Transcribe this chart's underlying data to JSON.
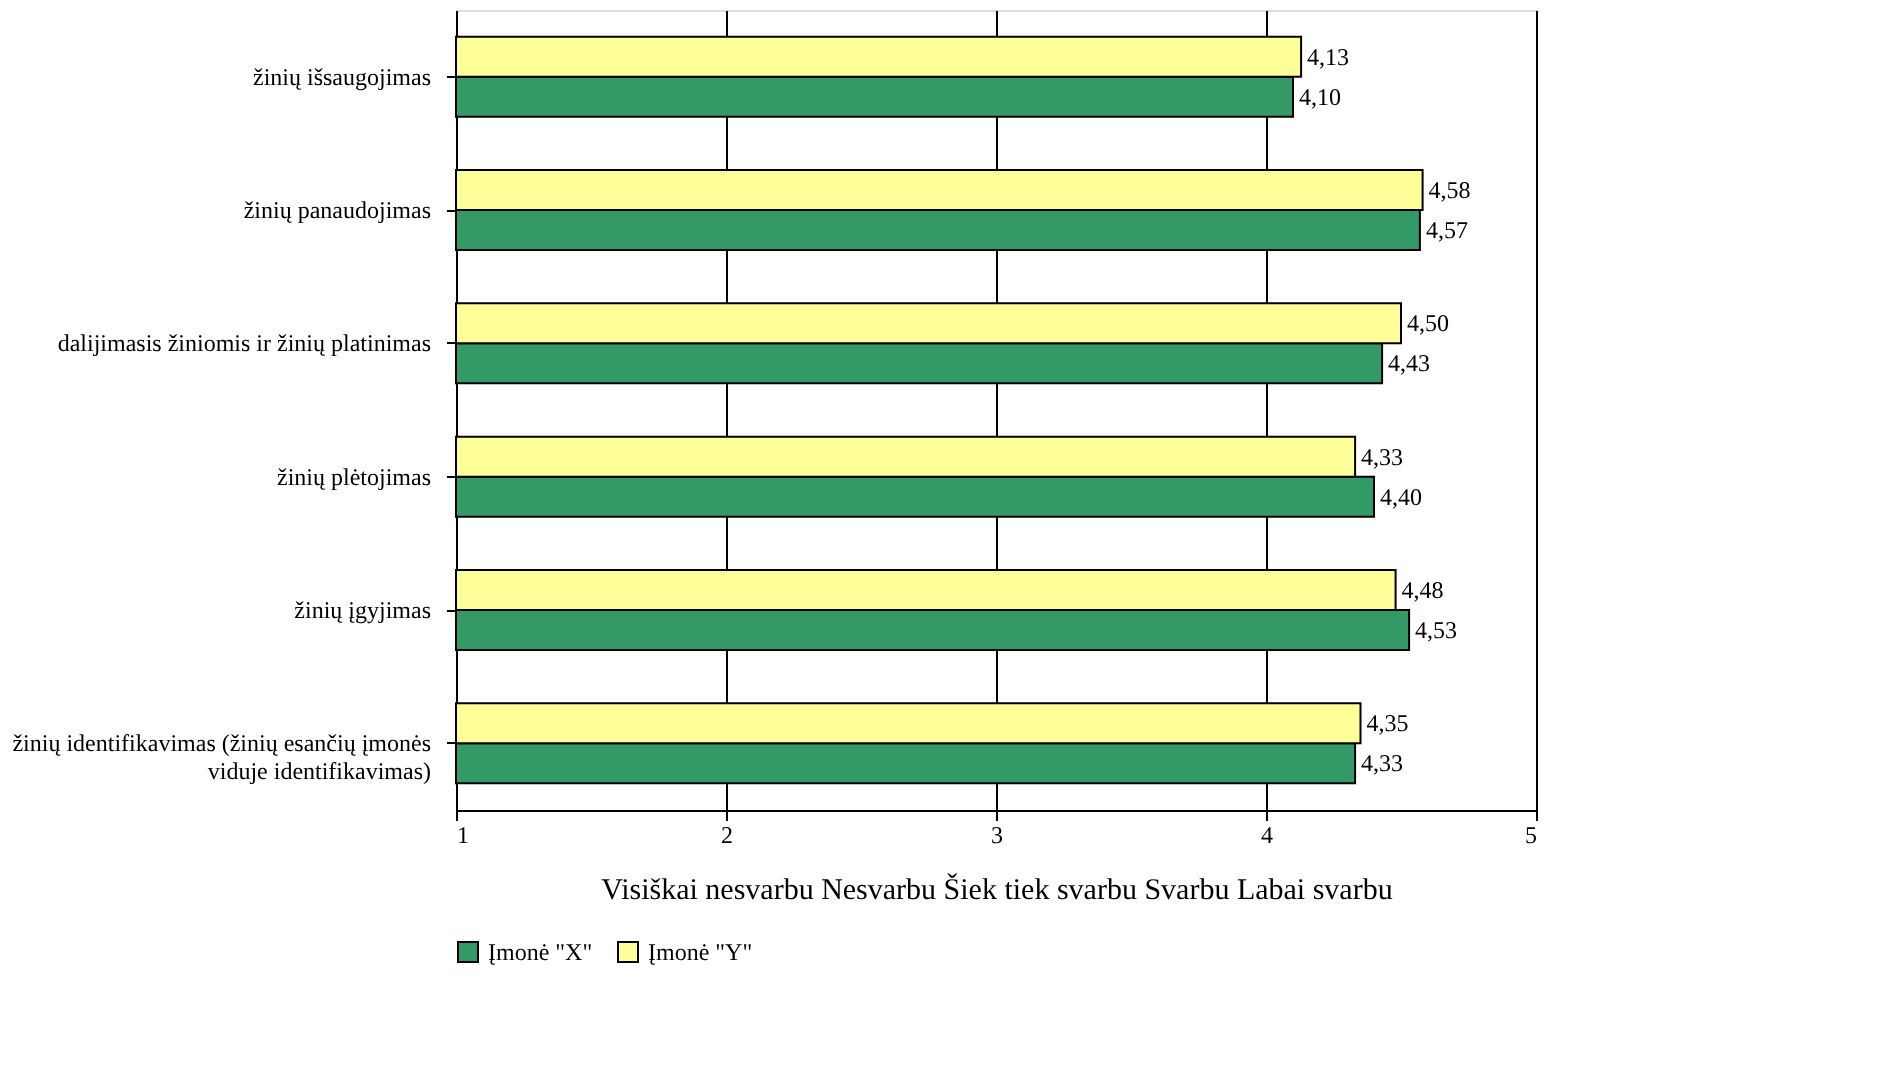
{
  "chart_data": {
    "type": "bar",
    "orientation": "horizontal",
    "xlabel": "Visiškai nesvarbu Nesvarbu Šiek tiek svarbu  Svarbu Labai svarbu",
    "categories": [
      "žinių išsaugojimas",
      "žinių panaudojimas",
      "dalijimasis žiniomis ir žinių platinimas",
      "žinių plėtojimas",
      "žinių įgyjimas",
      "žinių identifikavimas (žinių esančių įmonės viduje identifikavimas)"
    ],
    "series": [
      {
        "name": "Įmonė \"X\"",
        "color": "#339966",
        "values": [
          4.1,
          4.57,
          4.43,
          4.4,
          4.53,
          4.33
        ],
        "value_labels": [
          "4,10",
          "4,57",
          "4,43",
          "4,40",
          "4,53",
          "4,33"
        ]
      },
      {
        "name": "Įmonė \"Y\"",
        "color": "#ffff99",
        "values": [
          4.13,
          4.58,
          4.5,
          4.33,
          4.48,
          4.35
        ],
        "value_labels": [
          "4,13",
          "4,58",
          "4,50",
          "4,33",
          "4,48",
          "4,35"
        ]
      }
    ],
    "xlim": [
      1,
      5
    ],
    "xticks": [
      1,
      2,
      3,
      4,
      5
    ],
    "grid": "x",
    "legend": "bottom"
  }
}
